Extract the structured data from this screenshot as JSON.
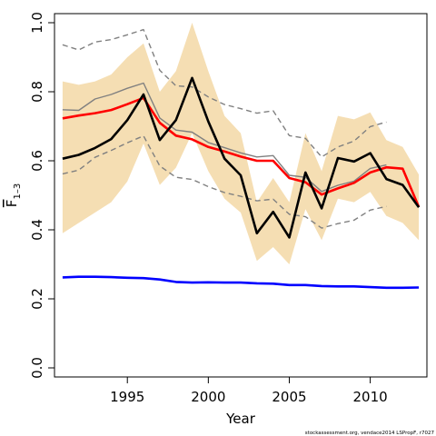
{
  "chart_data": {
    "type": "line",
    "xlabel": "Year",
    "ylabel_main": "F",
    "ylabel_sub": "1–3",
    "xlim": [
      1990.5,
      2013.5
    ],
    "ylim": [
      0.0,
      1.0
    ],
    "xticks": [
      1995,
      2000,
      2005,
      2010
    ],
    "yticks": [
      0.0,
      0.2,
      0.4,
      0.6,
      0.8,
      1.0
    ],
    "credit": "stockassessment.org, vendace2014 LSPropF, r7027",
    "colors": {
      "band": "#f5deb3",
      "estimate": "#000000",
      "smoothed": "#ff0000",
      "reference": "#0000ff",
      "retro_mean": "#808080",
      "retro_ci": "#808080"
    },
    "confidence_band": {
      "x": [
        1991,
        1992,
        1993,
        1994,
        1995,
        1996,
        1997,
        1998,
        1999,
        2000,
        2001,
        2002,
        2003,
        2004,
        2005,
        2006,
        2007,
        2008,
        2009,
        2010,
        2011,
        2012,
        2013
      ],
      "upper": [
        0.83,
        0.82,
        0.83,
        0.85,
        0.9,
        0.94,
        0.8,
        0.86,
        1.0,
        0.86,
        0.73,
        0.68,
        0.48,
        0.55,
        0.48,
        0.68,
        0.57,
        0.73,
        0.72,
        0.74,
        0.66,
        0.64,
        0.56
      ],
      "lower": [
        0.39,
        0.42,
        0.45,
        0.48,
        0.54,
        0.65,
        0.53,
        0.58,
        0.68,
        0.57,
        0.49,
        0.45,
        0.31,
        0.35,
        0.3,
        0.46,
        0.37,
        0.49,
        0.48,
        0.51,
        0.44,
        0.42,
        0.37
      ]
    },
    "series": [
      {
        "key": "estimate",
        "x": [
          1991,
          1992,
          1993,
          1994,
          1995,
          1996,
          1997,
          1998,
          1999,
          2000,
          2001,
          2002,
          2003,
          2004,
          2005,
          2006,
          2007,
          2008,
          2009,
          2010,
          2011,
          2012,
          2013
        ],
        "values": [
          0.606,
          0.617,
          0.637,
          0.663,
          0.718,
          0.792,
          0.66,
          0.718,
          0.84,
          0.714,
          0.606,
          0.558,
          0.39,
          0.452,
          0.378,
          0.566,
          0.462,
          0.608,
          0.598,
          0.622,
          0.547,
          0.53,
          0.465
        ]
      },
      {
        "key": "smoothed",
        "x": [
          1991,
          1992,
          1993,
          1994,
          1995,
          1996,
          1997,
          1998,
          1999,
          2000,
          2001,
          2002,
          2003,
          2004,
          2005,
          2006,
          2007,
          2008,
          2009,
          2010,
          2011,
          2012,
          2013
        ],
        "values": [
          0.723,
          0.731,
          0.738,
          0.747,
          0.764,
          0.782,
          0.71,
          0.673,
          0.662,
          0.64,
          0.627,
          0.612,
          0.6,
          0.6,
          0.55,
          0.538,
          0.502,
          0.52,
          0.536,
          0.566,
          0.581,
          0.577,
          0.466
        ]
      },
      {
        "key": "reference",
        "x": [
          1991,
          1992,
          1993,
          1994,
          1995,
          1996,
          1997,
          1998,
          1999,
          2000,
          2001,
          2002,
          2003,
          2004,
          2005,
          2006,
          2007,
          2008,
          2009,
          2010,
          2011,
          2012,
          2013
        ],
        "values": [
          0.262,
          0.264,
          0.264,
          0.263,
          0.261,
          0.26,
          0.256,
          0.249,
          0.247,
          0.248,
          0.247,
          0.247,
          0.245,
          0.244,
          0.24,
          0.24,
          0.237,
          0.236,
          0.236,
          0.234,
          0.232,
          0.232,
          0.233
        ]
      },
      {
        "key": "retro_mean",
        "x": [
          1991,
          1992,
          1993,
          1994,
          1995,
          1996,
          1997,
          1998,
          1999,
          2000,
          2001,
          2002,
          2003,
          2004,
          2005,
          2006,
          2007,
          2008,
          2009,
          2010,
          2011
        ],
        "values": [
          0.748,
          0.746,
          0.779,
          0.792,
          0.81,
          0.825,
          0.724,
          0.689,
          0.683,
          0.653,
          0.638,
          0.623,
          0.611,
          0.615,
          0.558,
          0.552,
          0.511,
          0.529,
          0.541,
          0.578,
          0.588
        ]
      },
      {
        "key": "retro_upper",
        "x": [
          1991,
          1992,
          1993,
          1994,
          1995,
          1996,
          1997,
          1998,
          1999,
          2000,
          2001,
          2002,
          2003,
          2004,
          2005,
          2006,
          2007,
          2008,
          2009,
          2010,
          2011
        ],
        "values": [
          0.936,
          0.921,
          0.944,
          0.951,
          0.965,
          0.98,
          0.862,
          0.817,
          0.814,
          0.785,
          0.763,
          0.751,
          0.738,
          0.745,
          0.673,
          0.665,
          0.611,
          0.64,
          0.657,
          0.699,
          0.712
        ]
      },
      {
        "key": "retro_lower",
        "x": [
          1991,
          1992,
          1993,
          1994,
          1995,
          1996,
          1997,
          1998,
          1999,
          2000,
          2001,
          2002,
          2003,
          2004,
          2005,
          2006,
          2007,
          2008,
          2009,
          2010,
          2011
        ],
        "values": [
          0.562,
          0.573,
          0.61,
          0.63,
          0.652,
          0.672,
          0.585,
          0.552,
          0.546,
          0.525,
          0.508,
          0.497,
          0.484,
          0.489,
          0.445,
          0.438,
          0.405,
          0.418,
          0.428,
          0.457,
          0.468
        ]
      }
    ]
  }
}
